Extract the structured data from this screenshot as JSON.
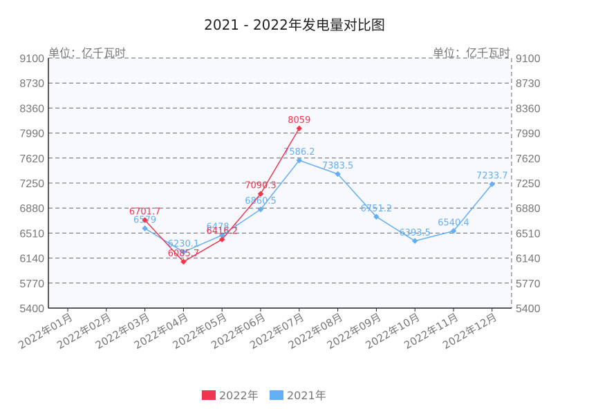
{
  "chart_data": {
    "type": "line",
    "title": "2021 - 2022年发电量对比图",
    "ylabel_left": "单位：亿千瓦时",
    "ylabel_right": "单位：亿千瓦时",
    "ylim": [
      5400,
      9100
    ],
    "yticks": [
      5400,
      5770,
      6140,
      6510,
      6880,
      7250,
      7620,
      7990,
      8360,
      8730,
      9100
    ],
    "categories": [
      "2022年01月",
      "2022年02月",
      "2022年03月",
      "2022年04月",
      "2022年05月",
      "2022年06月",
      "2022年07月",
      "2022年08月",
      "2022年09月",
      "2022年10月",
      "2022年11月",
      "2022年12月"
    ],
    "series": [
      {
        "name": "2022年",
        "color": "#f0364e",
        "values": [
          null,
          null,
          6701.7,
          6085.7,
          6416.2,
          7090.3,
          8059,
          null,
          null,
          null,
          null,
          null
        ]
      },
      {
        "name": "2021年",
        "color": "#63aef5",
        "values": [
          null,
          null,
          6579,
          6230.1,
          6478.4,
          6860.5,
          7586.2,
          7383.5,
          6751.2,
          6393.5,
          6540.4,
          7233.7
        ]
      }
    ],
    "grid": true,
    "legend_position": "bottom"
  }
}
